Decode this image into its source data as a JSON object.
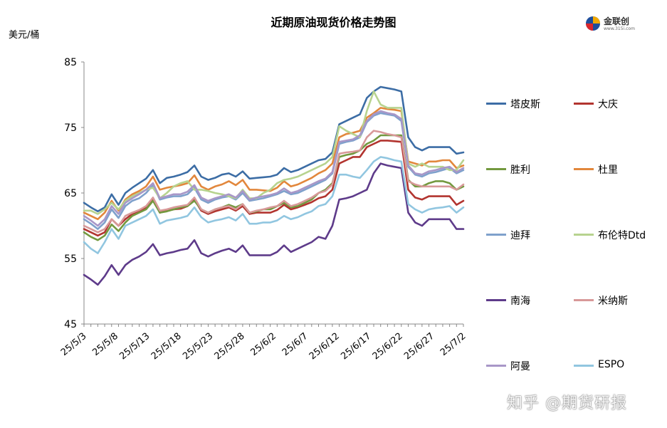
{
  "title": "近期原油现货价格走势图",
  "unit": "美元/桶",
  "logo": {
    "text": "金联创",
    "url": "www.315i.com"
  },
  "watermark": "知乎 @期货研报",
  "chart_data": {
    "type": "line",
    "title": "近期原油现货价格走势图",
    "ylabel": "美元/桶",
    "ylim": [
      45,
      85
    ],
    "yticks": [
      45,
      55,
      65,
      75,
      85
    ],
    "xtick_labels": [
      "25/5/3",
      "25/5/8",
      "25/5/13",
      "25/5/18",
      "25/5/23",
      "25/5/28",
      "25/6/2",
      "25/6/7",
      "25/6/12",
      "25/6/17",
      "25/6/22",
      "25/6/27",
      "25/7/2"
    ],
    "grid": false,
    "legend_position": "right",
    "series": [
      {
        "name": "塔皮斯",
        "color": "#3C6DA5",
        "values": [
          63.5,
          62.8,
          62.2,
          62.8,
          64.8,
          63.2,
          65.0,
          65.8,
          66.5,
          67.2,
          68.5,
          66.5,
          67.3,
          67.5,
          67.8,
          68.2,
          69.2,
          67.5,
          67.0,
          67.3,
          67.8,
          68.0,
          67.5,
          68.3,
          67.2,
          67.3,
          67.4,
          67.5,
          67.8,
          68.8,
          68.2,
          68.5,
          69.0,
          69.5,
          70.0,
          70.2,
          71.2,
          75.5,
          76.0,
          76.5,
          77.0,
          79.5,
          80.5,
          81.2,
          81.0,
          80.8,
          80.5,
          73.5,
          72.0,
          71.5,
          72.0,
          72.0,
          72.0,
          72.0,
          71.0,
          71.2
        ]
      },
      {
        "name": "大庆",
        "color": "#B2342F",
        "values": [
          59.5,
          59.0,
          58.5,
          59.0,
          61.0,
          60.0,
          61.0,
          61.8,
          62.3,
          62.8,
          64.0,
          62.0,
          62.3,
          62.5,
          62.6,
          63.0,
          64.0,
          62.3,
          61.8,
          62.2,
          62.5,
          62.8,
          62.3,
          63.0,
          61.8,
          62.0,
          62.0,
          62.0,
          62.4,
          63.2,
          62.5,
          62.8,
          63.2,
          63.6,
          64.2,
          64.5,
          65.5,
          69.5,
          70.0,
          70.5,
          70.5,
          72.0,
          72.5,
          73.0,
          73.0,
          72.9,
          72.8,
          65.5,
          64.3,
          64.0,
          64.5,
          64.5,
          64.5,
          64.5,
          63.2,
          63.8
        ]
      },
      {
        "name": "胜利",
        "color": "#73993F",
        "values": [
          59.0,
          58.3,
          57.8,
          58.5,
          60.2,
          59.2,
          60.5,
          61.5,
          62.0,
          62.5,
          63.8,
          62.0,
          62.2,
          62.5,
          62.8,
          63.0,
          63.8,
          62.5,
          62.0,
          62.5,
          62.8,
          63.2,
          62.8,
          63.3,
          62.0,
          62.2,
          62.5,
          62.5,
          63.0,
          63.5,
          62.8,
          63.0,
          63.5,
          64.0,
          65.0,
          65.5,
          66.5,
          70.5,
          70.8,
          71.0,
          71.5,
          72.5,
          73.0,
          73.8,
          73.8,
          73.8,
          73.8,
          67.0,
          66.0,
          66.0,
          66.5,
          66.8,
          66.8,
          66.5,
          65.5,
          66.0
        ]
      },
      {
        "name": "杜里",
        "color": "#E2873C",
        "values": [
          62.0,
          61.5,
          61.0,
          62.0,
          63.8,
          62.3,
          64.0,
          64.8,
          65.3,
          66.0,
          67.5,
          65.5,
          65.8,
          66.0,
          66.2,
          66.5,
          67.7,
          66.0,
          65.5,
          66.0,
          66.3,
          66.8,
          66.2,
          67.0,
          65.5,
          65.5,
          65.4,
          65.3,
          65.8,
          66.8,
          66.0,
          66.3,
          66.8,
          67.3,
          68.0,
          68.5,
          69.5,
          73.5,
          74.0,
          74.2,
          74.5,
          76.5,
          77.2,
          78.0,
          77.8,
          77.7,
          77.5,
          69.8,
          69.5,
          69.2,
          69.8,
          69.8,
          70.0,
          70.0,
          68.8,
          69.2
        ]
      },
      {
        "name": "迪拜",
        "color": "#7FA1CC",
        "values": [
          61.0,
          60.3,
          59.5,
          60.5,
          62.5,
          61.2,
          63.0,
          63.8,
          64.2,
          65.0,
          66.2,
          64.0,
          64.3,
          64.5,
          64.5,
          64.8,
          65.8,
          64.0,
          63.5,
          64.0,
          64.3,
          64.5,
          64.0,
          65.0,
          63.8,
          64.0,
          64.2,
          64.5,
          64.8,
          65.3,
          64.8,
          65.0,
          65.5,
          66.0,
          66.5,
          67.0,
          68.0,
          72.5,
          72.8,
          73.0,
          73.5,
          75.8,
          76.8,
          77.2,
          77.0,
          76.8,
          76.0,
          69.0,
          67.8,
          67.5,
          68.0,
          68.2,
          68.5,
          68.8,
          68.0,
          68.5
        ]
      },
      {
        "name": "布伦特Dtd",
        "color": "#B7D38F",
        "values": [
          62.3,
          62.3,
          61.8,
          62.5,
          63.5,
          62.5,
          63.8,
          64.5,
          65.0,
          65.5,
          65.8,
          64.2,
          65.0,
          66.0,
          66.5,
          66.8,
          65.5,
          65.5,
          65.3,
          65.0,
          64.8,
          64.5,
          64.2,
          65.5,
          64.2,
          64.2,
          65.0,
          65.5,
          66.5,
          67.0,
          67.2,
          67.5,
          68.0,
          68.5,
          69.0,
          69.5,
          70.5,
          75.2,
          74.5,
          74.0,
          73.5,
          77.5,
          80.5,
          78.5,
          78.0,
          78.0,
          78.0,
          69.5,
          69.0,
          69.5,
          69.0,
          69.0,
          69.0,
          68.5,
          68.5,
          70.0
        ]
      },
      {
        "name": "南海",
        "color": "#5E3B8A",
        "values": [
          52.5,
          51.8,
          51.0,
          52.3,
          54.0,
          52.5,
          54.0,
          54.8,
          55.3,
          56.0,
          57.2,
          55.5,
          55.8,
          56.0,
          56.3,
          56.5,
          57.8,
          55.8,
          55.3,
          55.8,
          56.2,
          56.5,
          56.0,
          57.0,
          55.5,
          55.5,
          55.5,
          55.5,
          56.0,
          57.0,
          56.0,
          56.5,
          57.0,
          57.5,
          58.3,
          58.0,
          60.0,
          64.0,
          64.2,
          64.5,
          65.0,
          65.5,
          68.0,
          69.5,
          69.2,
          69.0,
          68.8,
          62.0,
          60.5,
          60.0,
          61.0,
          61.0,
          61.0,
          61.0,
          59.5,
          59.5
        ]
      },
      {
        "name": "米纳斯",
        "color": "#D89999",
        "values": [
          60.0,
          59.5,
          59.0,
          59.5,
          61.0,
          60.0,
          61.5,
          62.0,
          62.4,
          63.0,
          64.3,
          62.3,
          62.5,
          62.8,
          63.0,
          63.2,
          64.3,
          62.5,
          62.0,
          62.5,
          62.8,
          63.0,
          62.5,
          63.3,
          62.0,
          62.3,
          62.5,
          62.8,
          63.0,
          63.8,
          63.0,
          63.3,
          63.8,
          64.3,
          65.0,
          65.3,
          66.3,
          71.0,
          71.2,
          71.3,
          71.5,
          73.5,
          74.5,
          74.3,
          74.0,
          73.8,
          73.5,
          66.8,
          66.3,
          66.0,
          66.0,
          66.0,
          66.0,
          66.0,
          65.5,
          66.3
        ]
      },
      {
        "name": "阿曼",
        "color": "#A897C8",
        "values": [
          61.5,
          60.8,
          60.0,
          61.0,
          63.0,
          61.8,
          63.5,
          64.2,
          64.8,
          65.5,
          66.5,
          64.2,
          64.5,
          64.8,
          64.8,
          65.2,
          66.2,
          64.3,
          63.8,
          64.2,
          64.5,
          64.8,
          64.3,
          65.3,
          64.0,
          64.3,
          64.5,
          64.7,
          65.0,
          65.7,
          65.0,
          65.3,
          65.8,
          66.3,
          66.8,
          67.2,
          68.2,
          72.8,
          73.0,
          73.2,
          73.8,
          76.0,
          77.0,
          77.5,
          77.2,
          77.0,
          76.3,
          69.2,
          68.0,
          67.8,
          68.3,
          68.5,
          68.8,
          69.0,
          68.2,
          68.8
        ]
      },
      {
        "name": "ESPO",
        "color": "#91C6E0",
        "values": [
          57.5,
          56.5,
          55.8,
          57.5,
          59.5,
          58.0,
          60.0,
          60.5,
          61.0,
          61.5,
          62.5,
          60.3,
          60.8,
          61.0,
          61.2,
          61.5,
          62.8,
          61.3,
          60.5,
          60.8,
          61.0,
          61.3,
          60.8,
          61.8,
          60.3,
          60.3,
          60.5,
          60.5,
          60.8,
          61.5,
          61.0,
          61.3,
          61.8,
          62.2,
          63.0,
          63.3,
          64.5,
          67.8,
          67.8,
          67.5,
          67.3,
          68.5,
          69.8,
          70.5,
          70.3,
          70.0,
          69.8,
          63.3,
          62.5,
          62.0,
          62.5,
          62.7,
          62.8,
          63.0,
          62.0,
          62.8
        ]
      }
    ]
  }
}
